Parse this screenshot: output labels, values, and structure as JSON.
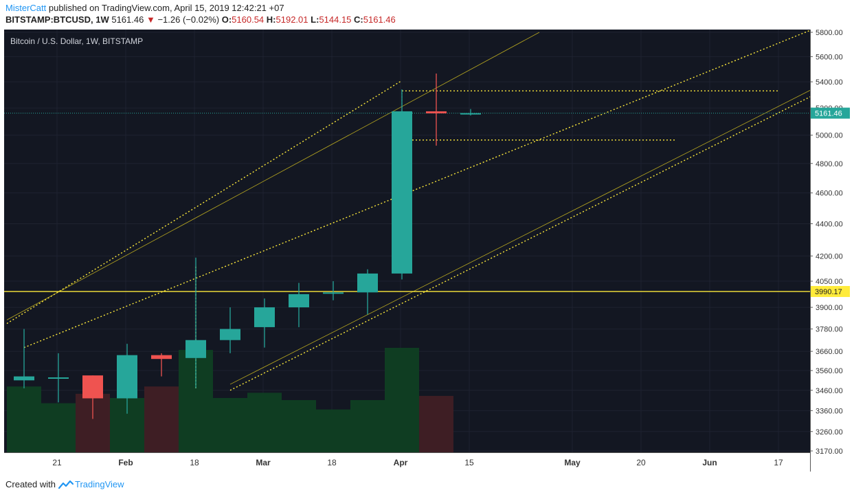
{
  "header": {
    "author": "MisterCatt",
    "published_text": "published on TradingView.com, April 15, 2019 12:42:21 +07",
    "symbol": "BITSTAMP:BTCUSD",
    "interval": ", 1W",
    "last": "5161.46",
    "change_arrow": "▼",
    "change": "−1.26 (−0.02%)",
    "open_label": "O:",
    "open": "5160.54",
    "high_label": "H:",
    "high": "5192.01",
    "low_label": "L:",
    "low": "5144.15",
    "close_label": "C:",
    "close": "5161.46"
  },
  "footer": {
    "created_with": "Created with",
    "brand": "TradingView"
  },
  "chart_data": {
    "type": "candlestick",
    "title": "Bitcoin / U.S. Dollar, 1W, BITSTAMP",
    "y_scale": "log",
    "ylim": [
      3170,
      5800
    ],
    "y_ticks": [
      3170,
      3260,
      3360,
      3460,
      3560,
      3660,
      3780,
      3900,
      4050,
      4200,
      4400,
      4600,
      4800,
      5000,
      5200,
      5400,
      5600,
      5800
    ],
    "y_tick_labels": [
      "3170.00",
      "3260.00",
      "3360.00",
      "3460.00",
      "3560.00",
      "3660.00",
      "3780.00",
      "3900.00",
      "4050.00",
      "4200.00",
      "4400.00",
      "4600.00",
      "4800.00",
      "5000.00",
      "5200.00",
      "5400.00",
      "5600.00",
      "5800.00"
    ],
    "x_ticks": [
      {
        "week": 1,
        "label": "21"
      },
      {
        "week": 3,
        "label": "Feb"
      },
      {
        "week": 5,
        "label": "18"
      },
      {
        "week": 7,
        "label": "Mar"
      },
      {
        "week": 9,
        "label": "18"
      },
      {
        "week": 11,
        "label": "Apr"
      },
      {
        "week": 13,
        "label": "15"
      },
      {
        "week": 16,
        "label": "May"
      },
      {
        "week": 18,
        "label": "20"
      },
      {
        "week": 20,
        "label": "Jun"
      },
      {
        "week": 22,
        "label": "17"
      }
    ],
    "candles": [
      {
        "o": 3510,
        "h": 3780,
        "l": 3470,
        "c": 3530
      },
      {
        "o": 3525,
        "h": 3650,
        "l": 3400,
        "c": 3525
      },
      {
        "o": 3535,
        "h": 3535,
        "l": 3320,
        "c": 3420
      },
      {
        "o": 3420,
        "h": 3700,
        "l": 3345,
        "c": 3640
      },
      {
        "o": 3640,
        "h": 3650,
        "l": 3530,
        "c": 3620
      },
      {
        "o": 3625,
        "h": 4190,
        "l": 3470,
        "c": 3720
      },
      {
        "o": 3720,
        "h": 3900,
        "l": 3650,
        "c": 3780
      },
      {
        "o": 3790,
        "h": 3950,
        "l": 3680,
        "c": 3900
      },
      {
        "o": 3900,
        "h": 4040,
        "l": 3790,
        "c": 3975
      },
      {
        "o": 3980,
        "h": 4050,
        "l": 3940,
        "c": 3985
      },
      {
        "o": 3985,
        "h": 4120,
        "l": 3860,
        "c": 4095
      },
      {
        "o": 4095,
        "h": 5340,
        "l": 4060,
        "c": 5175
      },
      {
        "o": 5175,
        "h": 5465,
        "l": 4925,
        "c": 5160
      },
      {
        "o": 5160.54,
        "h": 5192.01,
        "l": 5144.15,
        "c": 5161.46
      }
    ],
    "volume_relative": [
      0.63,
      0.47,
      0.56,
      0.52,
      0.63,
      0.98,
      0.52,
      0.57,
      0.5,
      0.41,
      0.5,
      1.0,
      0.54,
      0.0
    ],
    "horizontal_lines": [
      {
        "price": 3990.17,
        "label": "3990.17",
        "color": "#ffeb3b"
      },
      {
        "price": 5161.46,
        "label": "5161.46",
        "color": "#26a69a"
      }
    ],
    "colors": {
      "background": "#131722",
      "up": "#26a69a",
      "down": "#ef5350",
      "volume_up": "#0f3d22",
      "volume_down": "#3e1e24",
      "trendline": "#ffeb3b"
    },
    "trendlines": [
      {
        "p1": [
          -0.5,
          3830
        ],
        "p2": [
          15.0,
          5800
        ],
        "style": "thin"
      },
      {
        "p1": [
          -0.5,
          3810
        ],
        "p2": [
          11.0,
          5410
        ],
        "style": "dotted"
      },
      {
        "p1": [
          0.0,
          3680
        ],
        "p2": [
          23.0,
          5830
        ],
        "style": "dotted"
      },
      {
        "p1": [
          6.0,
          3490
        ],
        "p2": [
          23.0,
          5350
        ],
        "style": "thin"
      },
      {
        "p1": [
          6.0,
          3460
        ],
        "p2": [
          23.0,
          5300
        ],
        "style": "dotted"
      },
      {
        "p1": [
          11.0,
          5330
        ],
        "p2": [
          22.0,
          5330
        ],
        "style": "dotted"
      },
      {
        "p1": [
          11.3,
          4965
        ],
        "p2": [
          19.0,
          4965
        ],
        "style": "dotted"
      },
      {
        "p1": [
          5.0,
          3470
        ],
        "p2": [
          5.0,
          4140
        ],
        "style": "dotted"
      },
      {
        "p1": [
          11.0,
          5175
        ],
        "p2": [
          11.0,
          5340
        ],
        "style": "dotted-teal"
      }
    ]
  }
}
